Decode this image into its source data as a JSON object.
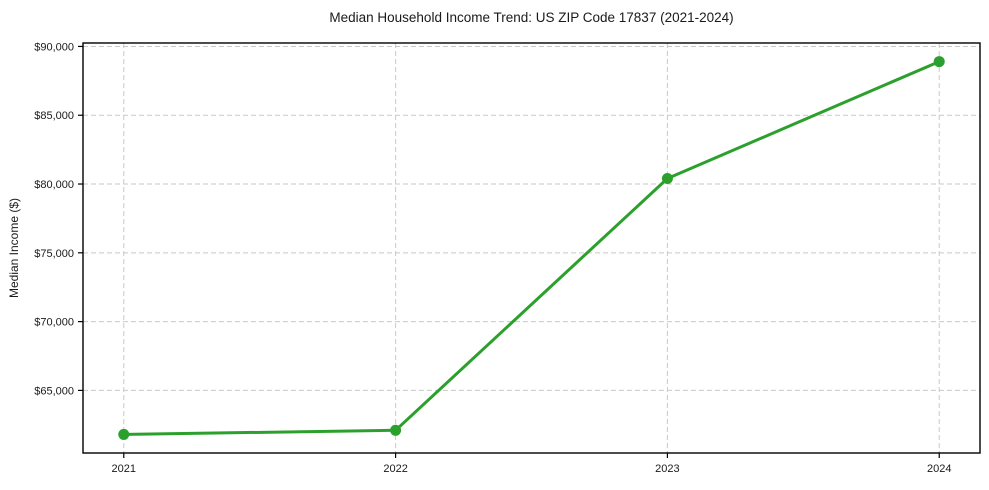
{
  "title": "Median Household Income Trend: US ZIP Code 17837 (2021-2024)",
  "chart_data": {
    "type": "line",
    "title": "Median Household Income Trend: US ZIP Code 17837 (2021-2024)",
    "xlabel": "",
    "ylabel": "Median Income ($)",
    "categories": [
      "2021",
      "2022",
      "2023",
      "2024"
    ],
    "series": [
      {
        "name": "Median Household Income",
        "values": [
          61800,
          62100,
          80400,
          88900
        ]
      }
    ],
    "yticks": [
      65000,
      70000,
      75000,
      80000,
      85000,
      90000
    ],
    "ytick_labels": [
      "$65,000",
      "$70,000",
      "$75,000",
      "$80,000",
      "$85,000",
      "$90,000"
    ],
    "ylim": [
      60450,
      90250
    ],
    "x_margin": 0.15,
    "grid": true,
    "grid_style": "dashed",
    "legend_position": "none",
    "line_color": "#2ca02c",
    "marker": "circle",
    "grid_color": "#c9c9c9",
    "border_color": "#000000",
    "text_color": "#1a1a1a",
    "background_color": "#ffffff"
  }
}
